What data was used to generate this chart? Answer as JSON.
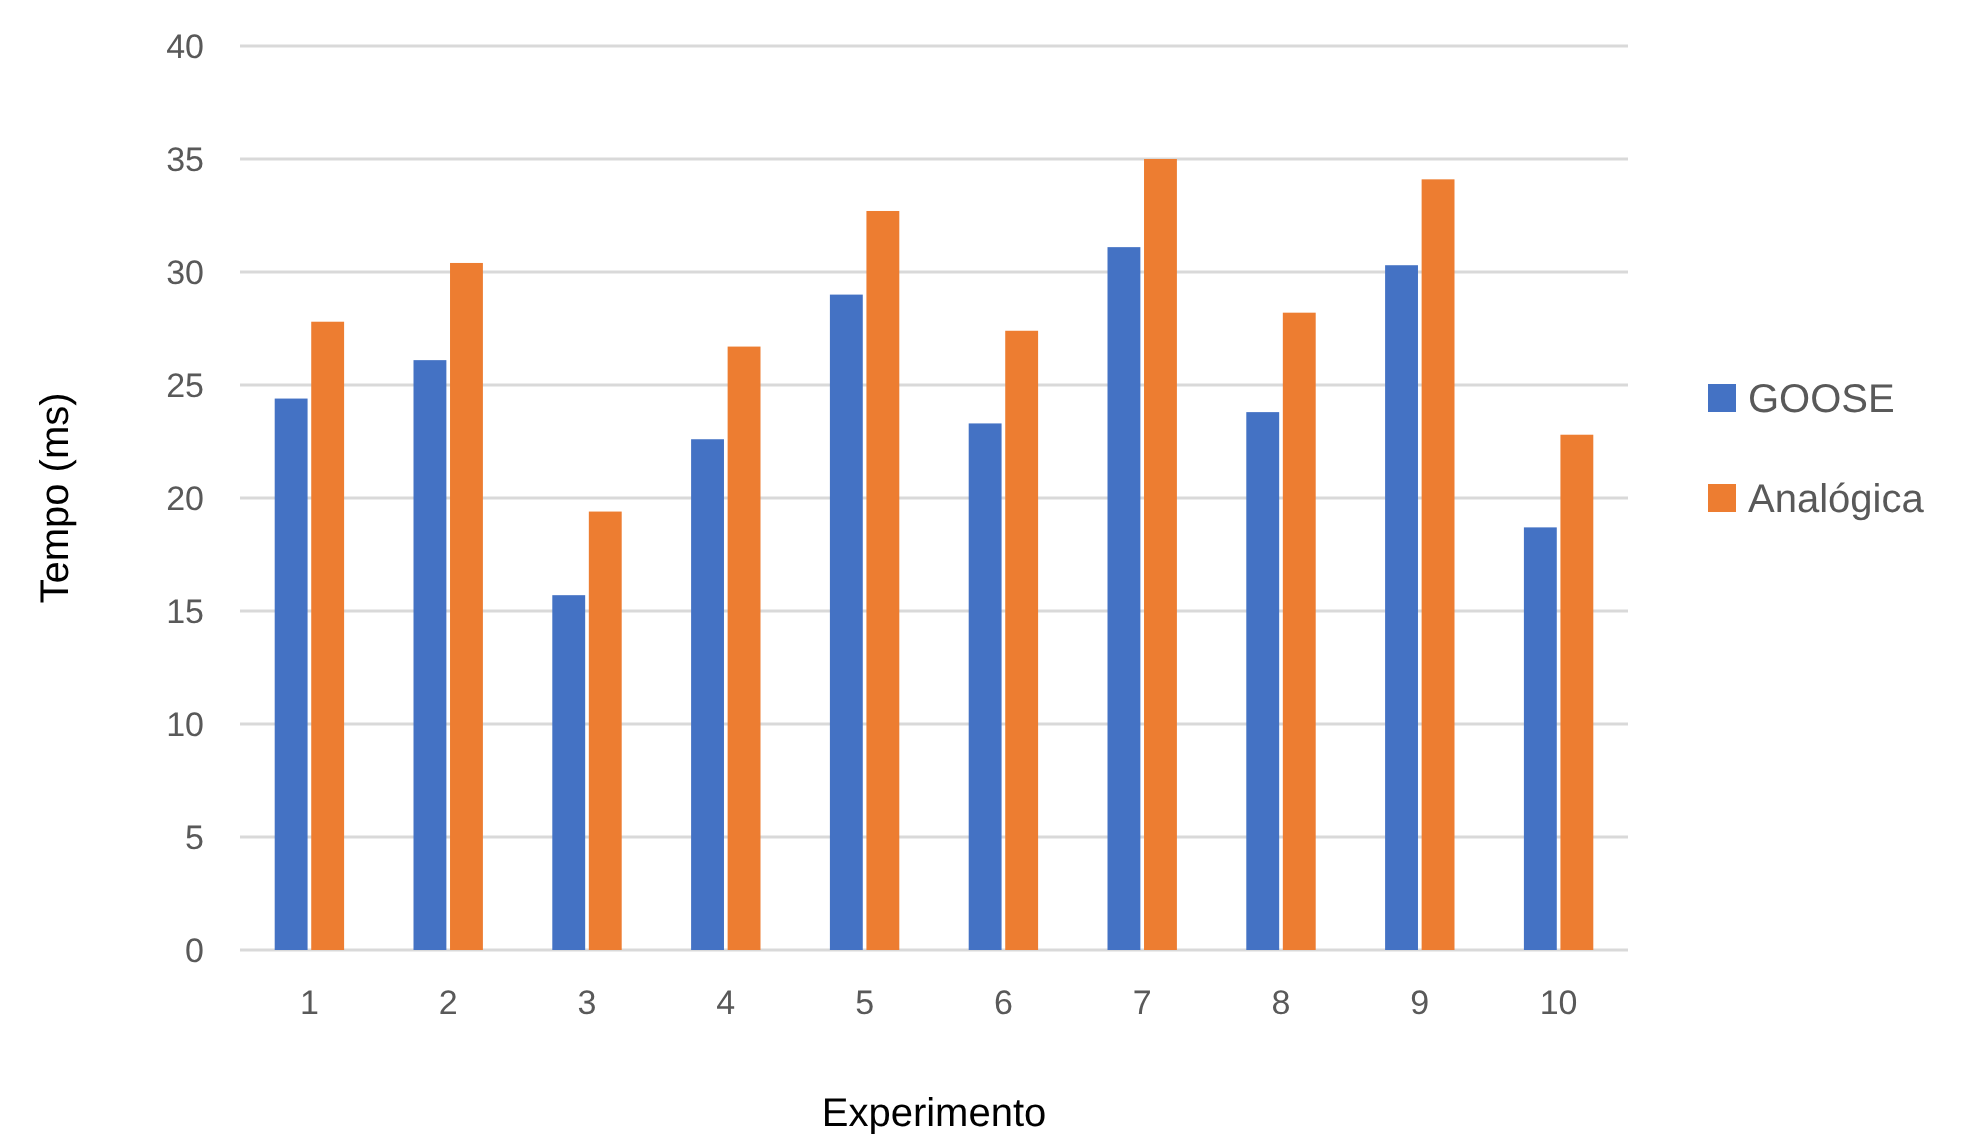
{
  "chart_data": {
    "type": "bar",
    "xlabel": "Experimento",
    "ylabel": "Tempo (ms)",
    "categories": [
      "1",
      "2",
      "3",
      "4",
      "5",
      "6",
      "7",
      "8",
      "9",
      "10"
    ],
    "series": [
      {
        "name": "GOOSE",
        "color": "#4472c4",
        "values": [
          24.4,
          26.1,
          15.7,
          22.6,
          29.0,
          23.3,
          31.1,
          23.8,
          30.3,
          18.7
        ]
      },
      {
        "name": "Analógica",
        "color": "#ed7d31",
        "values": [
          27.8,
          30.4,
          19.4,
          26.7,
          32.7,
          27.4,
          35.0,
          28.2,
          34.1,
          22.8
        ]
      }
    ],
    "ylim": [
      0,
      40
    ],
    "yticks": [
      0,
      5,
      10,
      15,
      20,
      25,
      30,
      35,
      40
    ],
    "grid": "y",
    "legend": "right"
  }
}
